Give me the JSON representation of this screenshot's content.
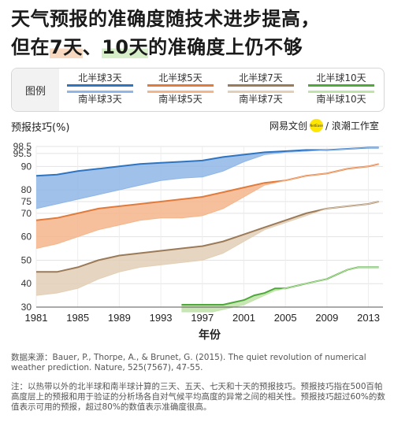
{
  "title": {
    "line1": "天气预报的准确度随技术进步提高，",
    "line2_pre": "但在",
    "line2_hl1": "7天",
    "line2_mid": "、",
    "line2_hl2": "10天",
    "line2_post": "的准确度上仍不够"
  },
  "legend": {
    "label": "图例",
    "items": [
      {
        "name": "北半球3天",
        "color": "#2f74c0"
      },
      {
        "name": "北半球5天",
        "color": "#e07b3c"
      },
      {
        "name": "北半球7天",
        "color": "#9b7a58"
      },
      {
        "name": "北半球10天",
        "color": "#4fa83a"
      },
      {
        "name": "南半球3天",
        "color": "#8fb6e6"
      },
      {
        "name": "南半球5天",
        "color": "#f4b58c"
      },
      {
        "name": "南半球7天",
        "color": "#e2cfb6"
      },
      {
        "name": "南半球10天",
        "color": "#bfe3a8"
      }
    ]
  },
  "brand": {
    "left": "网易",
    "mid": "文创",
    "dot": "NetEase",
    "right": "/ 浪潮工作室"
  },
  "source": "数据来源：Bauer, P., Thorpe, A., & Brunet, G. (2015). The quiet revolution of numerical weather prediction. Nature, 525(7567), 47-55.",
  "note": "注：以热带以外的北半球和南半球计算的三天、五天、七天和十天的预报技巧。预报技巧指在500百帕高度层上的预报和用于验证的分析场各自对气候平均高度的异常之间的相关性。预报技巧超过60%的数值表示可用的预报，超过80%的数值表示准确度很高。",
  "chart_data": {
    "type": "area",
    "ylabel": "预报技巧(%)",
    "xlabel": "年份",
    "xlim": [
      1981,
      2014.4
    ],
    "ylim": [
      30,
      98.5
    ],
    "yticks": [
      30,
      40,
      50,
      60,
      70,
      75,
      80,
      90,
      95.5,
      98.5
    ],
    "xticks": [
      1981,
      1985,
      1989,
      1993,
      1997,
      2001,
      2005,
      2009,
      2013
    ],
    "grid": true,
    "series": [
      {
        "name": "北半球3天",
        "color": "#2f74c0",
        "x": [
          1981,
          1983,
          1985,
          1987,
          1989,
          1991,
          1993,
          1995,
          1997,
          1999,
          2001,
          2003,
          2005,
          2007,
          2009,
          2011,
          2013,
          2014
        ],
        "values": [
          86,
          86.5,
          88,
          89,
          90,
          91,
          91.5,
          92,
          92.5,
          94,
          95,
          96,
          96.5,
          97,
          97,
          97.5,
          98,
          98
        ]
      },
      {
        "name": "南半球3天",
        "color": "#8fb6e6",
        "x": [
          1981,
          1983,
          1985,
          1987,
          1989,
          1991,
          1993,
          1995,
          1997,
          1999,
          2001,
          2003,
          2005,
          2007,
          2009,
          2011,
          2013,
          2014
        ],
        "values": [
          72,
          74,
          76,
          78,
          80,
          82,
          84,
          85,
          85.5,
          88,
          92,
          95,
          96,
          96.5,
          97,
          97.5,
          98,
          98
        ]
      },
      {
        "name": "北半球5天",
        "color": "#e07b3c",
        "x": [
          1981,
          1983,
          1985,
          1987,
          1989,
          1991,
          1993,
          1995,
          1997,
          1999,
          2001,
          2003,
          2005,
          2007,
          2009,
          2011,
          2013,
          2014
        ],
        "values": [
          67,
          68,
          70,
          72,
          73,
          74,
          75,
          76,
          77,
          79,
          81,
          83,
          84,
          86,
          87,
          89,
          90,
          91
        ]
      },
      {
        "name": "南半球5天",
        "color": "#f4b58c",
        "x": [
          1981,
          1983,
          1985,
          1987,
          1989,
          1991,
          1993,
          1995,
          1997,
          1999,
          2001,
          2003,
          2005,
          2007,
          2009,
          2011,
          2013,
          2014
        ],
        "values": [
          55,
          57,
          60,
          63,
          65,
          67,
          68,
          68,
          69,
          72,
          77,
          82,
          84,
          86,
          87,
          89,
          90,
          91
        ]
      },
      {
        "name": "北半球7天",
        "color": "#9b7a58",
        "x": [
          1981,
          1983,
          1985,
          1987,
          1989,
          1991,
          1993,
          1995,
          1997,
          1999,
          2001,
          2003,
          2005,
          2007,
          2009,
          2011,
          2013,
          2014
        ],
        "values": [
          45,
          45,
          47,
          50,
          52,
          53,
          54,
          55,
          56,
          58,
          61,
          64,
          67,
          70,
          72,
          73,
          74,
          75
        ]
      },
      {
        "name": "南半球7天",
        "color": "#e2cfb6",
        "x": [
          1981,
          1983,
          1985,
          1987,
          1989,
          1991,
          1993,
          1995,
          1997,
          1999,
          2001,
          2003,
          2005,
          2007,
          2009,
          2011,
          2013,
          2014
        ],
        "values": [
          35,
          36,
          38,
          42,
          45,
          47,
          48,
          49,
          50,
          53,
          58,
          63,
          66,
          69,
          72,
          73,
          74,
          75
        ]
      },
      {
        "name": "北半球10天",
        "color": "#4fa83a",
        "x": [
          1995,
          1996,
          1997,
          1998,
          1999,
          2000,
          2001,
          2002,
          2003,
          2004,
          2005,
          2006,
          2007,
          2008,
          2009,
          2010,
          2011,
          2012,
          2013,
          2014
        ],
        "values": [
          31,
          31,
          31,
          31,
          31,
          32,
          33,
          35,
          36,
          38,
          38,
          39,
          40,
          41,
          42,
          44,
          46,
          47,
          47,
          47
        ]
      },
      {
        "name": "南半球10天",
        "color": "#bfe3a8",
        "x": [
          1995,
          1996,
          1997,
          1998,
          1999,
          2000,
          2001,
          2002,
          2003,
          2004,
          2005,
          2006,
          2007,
          2008,
          2009,
          2010,
          2011,
          2012,
          2013,
          2014
        ],
        "values": [
          28,
          28,
          28,
          28,
          29,
          30,
          31,
          33,
          35,
          37,
          38,
          39,
          40,
          41,
          42,
          44,
          46,
          47,
          47,
          47
        ]
      }
    ]
  }
}
